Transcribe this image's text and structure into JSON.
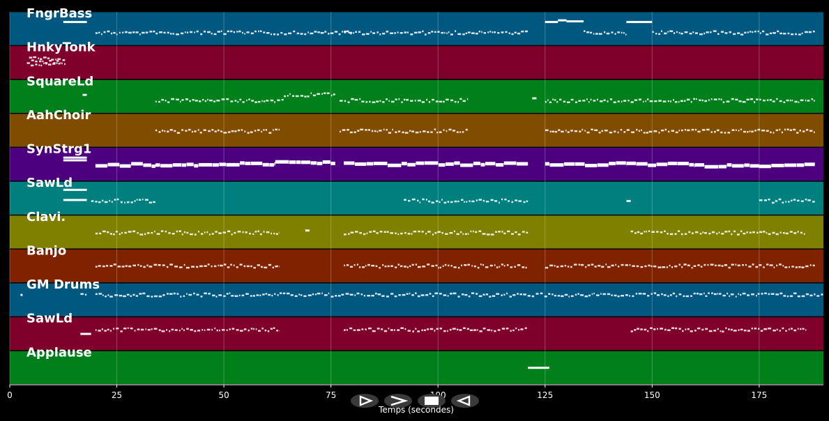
{
  "chart_data": {
    "type": "piano-roll",
    "xlabel": "Temps (secondes)",
    "xlim": [
      0,
      190
    ],
    "xticks": [
      0,
      25,
      50,
      75,
      100,
      125,
      150,
      175
    ],
    "grid": true,
    "tracks": [
      {
        "name": "FngrBass",
        "color": "#00577f",
        "notes": [
          [
            12.5,
            18,
            0.3
          ],
          [
            20,
            80,
            0.62
          ],
          [
            78,
            121,
            0.62
          ],
          [
            125,
            128,
            0.3
          ],
          [
            128,
            130,
            0.25
          ],
          [
            130,
            134,
            0.28
          ],
          [
            134,
            144,
            0.62
          ],
          [
            144,
            150,
            0.3
          ],
          [
            150,
            188,
            0.62
          ]
        ]
      },
      {
        "name": "HnkyTonk",
        "color": "#7f002a",
        "notes": [
          [
            4,
            13,
            0.55
          ],
          [
            4.5,
            13,
            0.38
          ],
          [
            5,
            12,
            0.48
          ]
        ]
      },
      {
        "name": "SquareLd",
        "color": "#007f1b",
        "notes": [
          [
            17,
            18,
            0.45
          ],
          [
            34,
            64,
            0.62
          ],
          [
            64,
            76,
            0.45
          ],
          [
            77,
            107,
            0.62
          ],
          [
            122,
            123,
            0.55
          ],
          [
            125,
            188,
            0.62
          ]
        ]
      },
      {
        "name": "AahChoir",
        "color": "#7f4c00",
        "notes": [
          [
            34,
            63,
            0.52
          ],
          [
            77,
            107,
            0.52
          ],
          [
            125,
            188,
            0.52
          ]
        ]
      },
      {
        "name": "SynStrg1",
        "color": "#4c007f",
        "notes": [
          [
            12.5,
            18,
            0.38
          ],
          [
            12.5,
            18,
            0.3
          ],
          [
            20,
            34,
            0.52
          ],
          [
            34,
            49,
            0.52
          ],
          [
            49,
            62,
            0.5
          ],
          [
            62,
            76,
            0.44
          ],
          [
            78,
            121,
            0.5
          ],
          [
            125,
            144,
            0.5
          ],
          [
            144,
            160,
            0.5
          ],
          [
            160,
            175,
            0.54
          ],
          [
            175,
            188,
            0.52
          ]
        ]
      },
      {
        "name": "SawLd",
        "color": "#007f7f",
        "notes": [
          [
            12.5,
            18,
            0.55
          ],
          [
            12.5,
            18,
            0.25
          ],
          [
            19,
            34,
            0.58
          ],
          [
            92,
            121,
            0.58
          ],
          [
            144,
            145,
            0.58
          ],
          [
            175,
            188,
            0.58
          ]
        ]
      },
      {
        "name": "Clavi.",
        "color": "#7f7f00",
        "notes": [
          [
            20,
            63,
            0.52
          ],
          [
            69,
            70,
            0.45
          ],
          [
            78,
            121,
            0.52
          ],
          [
            145,
            186,
            0.52
          ]
        ]
      },
      {
        "name": "Banjo",
        "color": "#7f2200",
        "notes": [
          [
            20,
            63,
            0.5
          ],
          [
            78,
            121,
            0.5
          ],
          [
            125,
            188,
            0.5
          ]
        ]
      },
      {
        "name": "GM Drums",
        "color": "#00577f",
        "notes": [
          [
            2.5,
            3,
            0.35
          ],
          [
            16.5,
            18,
            0.35
          ],
          [
            20,
            190,
            0.35
          ]
        ]
      },
      {
        "name": "SawLd",
        "color": "#7f002a",
        "notes": [
          [
            16.5,
            19,
            0.5
          ],
          [
            20,
            63,
            0.38
          ],
          [
            78,
            121,
            0.38
          ],
          [
            145,
            186,
            0.38
          ]
        ]
      },
      {
        "name": "Applause",
        "color": "#007f1b",
        "notes": [
          [
            121,
            126,
            0.5
          ]
        ]
      }
    ]
  },
  "controls": [
    {
      "name": "play-button",
      "icon": "play-icon"
    },
    {
      "name": "forward-button",
      "icon": "forward-icon"
    },
    {
      "name": "stop-button",
      "icon": "stop-icon"
    },
    {
      "name": "rewind-button",
      "icon": "rewind-icon"
    }
  ]
}
